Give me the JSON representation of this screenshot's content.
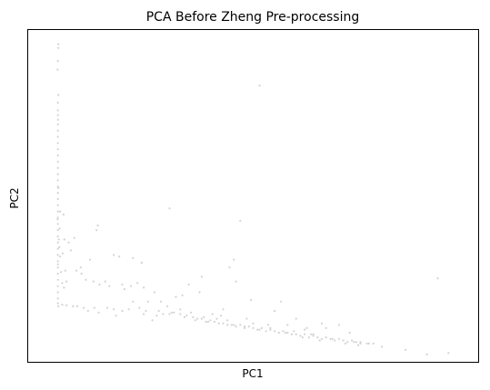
{
  "chart_data": {
    "type": "scatter",
    "title": "PCA Before Zheng Pre-processing",
    "xlabel": "PC1",
    "ylabel": "PC2",
    "xlim": [
      0,
      100
    ],
    "ylim": [
      0,
      100
    ],
    "grid": false,
    "x_ticks_shown": false,
    "y_ticks_shown": false,
    "point_color": "#d3d3d3",
    "series": [
      {
        "values": [
          [
            4.6,
            98.8
          ],
          [
            4.6,
            97.6
          ],
          [
            4.5,
            93.4
          ],
          [
            4.4,
            90.6
          ],
          [
            4.6,
            82.5
          ],
          [
            4.5,
            80.0
          ],
          [
            4.5,
            77.5
          ],
          [
            4.5,
            76.0
          ],
          [
            4.5,
            74.5
          ],
          [
            4.5,
            73.0
          ],
          [
            4.5,
            71.0
          ],
          [
            4.5,
            69.0
          ],
          [
            4.5,
            67.0
          ],
          [
            4.5,
            65.0
          ],
          [
            4.5,
            63.0
          ],
          [
            4.5,
            61.0
          ],
          [
            4.5,
            59.0
          ],
          [
            4.5,
            57.0
          ],
          [
            4.5,
            55.0
          ],
          [
            4.5,
            53.0
          ],
          [
            4.5,
            51.0
          ],
          [
            4.5,
            49.0
          ],
          [
            4.5,
            47.0
          ],
          [
            4.5,
            45.0
          ],
          [
            4.5,
            43.0
          ],
          [
            4.5,
            41.0
          ],
          [
            4.5,
            39.0
          ],
          [
            4.5,
            37.0
          ],
          [
            4.5,
            35.0
          ],
          [
            4.5,
            33.0
          ],
          [
            4.5,
            31.0
          ],
          [
            4.5,
            29.0
          ],
          [
            4.5,
            27.0
          ],
          [
            4.5,
            25.0
          ],
          [
            4.5,
            23.0
          ],
          [
            4.5,
            21.0
          ],
          [
            4.5,
            19.0
          ],
          [
            4.5,
            17.0
          ],
          [
            4.5,
            15.5
          ],
          [
            4.6,
            14.5
          ],
          [
            4.5,
            28.0
          ],
          [
            4.7,
            36.0
          ],
          [
            4.4,
            42.5
          ],
          [
            4.6,
            52.5
          ],
          [
            4.8,
            33.5
          ],
          [
            5.0,
            45.0
          ],
          [
            5.2,
            25.5
          ],
          [
            5.5,
            22.0
          ],
          [
            5.0,
            30.5
          ],
          [
            4.9,
            39.5
          ],
          [
            5.8,
            44.0
          ],
          [
            6.0,
            36.0
          ],
          [
            5.6,
            31.5
          ],
          [
            6.2,
            26.0
          ],
          [
            5.9,
            20.5
          ],
          [
            6.5,
            22.5
          ],
          [
            7.0,
            35.0
          ],
          [
            7.5,
            32.5
          ],
          [
            8.3,
            36.5
          ],
          [
            8.8,
            26.0
          ],
          [
            9.8,
            27.0
          ],
          [
            10.0,
            25.0
          ],
          [
            11.0,
            23.0
          ],
          [
            12.0,
            29.5
          ],
          [
            12.8,
            22.5
          ],
          [
            13.5,
            39.0
          ],
          [
            13.8,
            40.5
          ],
          [
            14.2,
            21.5
          ],
          [
            15.5,
            22.5
          ],
          [
            16.5,
            21.0
          ],
          [
            17.5,
            31.0
          ],
          [
            18.8,
            30.5
          ],
          [
            19.5,
            21.5
          ],
          [
            20.0,
            20.0
          ],
          [
            21.5,
            21.0
          ],
          [
            22.0,
            30.0
          ],
          [
            23.0,
            22.0
          ],
          [
            24.5,
            20.5
          ],
          [
            24.0,
            28.5
          ],
          [
            25.5,
            16.0
          ],
          [
            27.0,
            19.0
          ],
          [
            28.5,
            16.0
          ],
          [
            30.0,
            14.5
          ],
          [
            30.5,
            46.0
          ],
          [
            31.5,
            12.5
          ],
          [
            32.0,
            17.5
          ],
          [
            33.0,
            12.0
          ],
          [
            33.5,
            18.0
          ],
          [
            34.5,
            11.5
          ],
          [
            35.0,
            21.5
          ],
          [
            36.0,
            11.0
          ],
          [
            37.0,
            10.5
          ],
          [
            38.0,
            10.5
          ],
          [
            39.0,
            9.5
          ],
          [
            40.0,
            10.0
          ],
          [
            41.0,
            9.5
          ],
          [
            42.0,
            9.0
          ],
          [
            43.0,
            9.0
          ],
          [
            44.0,
            8.5
          ],
          [
            45.0,
            8.5
          ],
          [
            46.0,
            8.0
          ],
          [
            47.0,
            8.5
          ],
          [
            48.0,
            7.5
          ],
          [
            49.0,
            8.0
          ],
          [
            50.0,
            7.5
          ],
          [
            51.0,
            7.0
          ],
          [
            52.0,
            7.5
          ],
          [
            53.0,
            6.5
          ],
          [
            54.0,
            7.0
          ],
          [
            55.0,
            6.5
          ],
          [
            56.0,
            6.0
          ],
          [
            57.0,
            6.5
          ],
          [
            58.0,
            6.0
          ],
          [
            59.0,
            5.5
          ],
          [
            60.0,
            5.5
          ],
          [
            61.0,
            5.0
          ],
          [
            62.0,
            5.5
          ],
          [
            63.0,
            4.5
          ],
          [
            64.0,
            5.0
          ],
          [
            65.0,
            4.5
          ],
          [
            66.0,
            4.0
          ],
          [
            67.0,
            4.5
          ],
          [
            68.0,
            4.0
          ],
          [
            69.0,
            3.5
          ],
          [
            70.0,
            4.0
          ],
          [
            71.0,
            3.5
          ],
          [
            72.0,
            3.0
          ],
          [
            73.0,
            3.5
          ],
          [
            74.0,
            3.0
          ],
          [
            75.0,
            2.5
          ],
          [
            76.5,
            2.5
          ],
          [
            78.0,
            2.5
          ],
          [
            80.0,
            1.5
          ],
          [
            85.5,
            0.5
          ],
          [
            90.5,
            -1.0
          ],
          [
            95.5,
            -0.5
          ],
          [
            93.0,
            23.5
          ],
          [
            51.5,
            85.5
          ],
          [
            47.0,
            42.0
          ],
          [
            37.5,
            19.0
          ],
          [
            38.0,
            24.0
          ],
          [
            43.0,
            13.5
          ],
          [
            44.5,
            27.0
          ],
          [
            48.5,
            10.5
          ],
          [
            49.5,
            16.5
          ],
          [
            45.5,
            29.5
          ],
          [
            46.0,
            22.5
          ],
          [
            55.0,
            13.0
          ],
          [
            60.0,
            10.5
          ],
          [
            56.5,
            16.0
          ],
          [
            62.5,
            7.5
          ],
          [
            64.0,
            5.5
          ],
          [
            67.0,
            7.5
          ],
          [
            70.0,
            8.5
          ],
          [
            72.5,
            6.0
          ],
          [
            75.0,
            3.0
          ],
          [
            77.0,
            2.5
          ],
          [
            18.0,
            11.5
          ],
          [
            22.0,
            16.0
          ],
          [
            26.5,
            10.0
          ],
          [
            29.0,
            12.0
          ],
          [
            33.0,
            13.5
          ],
          [
            35.5,
            12.5
          ],
          [
            40.5,
            12.0
          ],
          [
            42.5,
            11.5
          ],
          [
            23.5,
            14.0
          ],
          [
            14.0,
            12.5
          ],
          [
            11.5,
            13.0
          ],
          [
            9.0,
            14.5
          ],
          [
            16.0,
            14.0
          ],
          [
            19.5,
            13.0
          ],
          [
            24.5,
            12.0
          ],
          [
            27.5,
            11.5
          ],
          [
            31.0,
            12.5
          ],
          [
            36.5,
            10.0
          ],
          [
            39.5,
            9.5
          ],
          [
            45.5,
            8.5
          ],
          [
            48.0,
            8.0
          ],
          [
            51.5,
            7.0
          ],
          [
            53.5,
            8.5
          ],
          [
            57.5,
            6.0
          ],
          [
            59.5,
            6.5
          ],
          [
            61.5,
            4.5
          ],
          [
            63.5,
            5.5
          ],
          [
            65.5,
            3.5
          ],
          [
            68.5,
            4.0
          ],
          [
            71.5,
            2.5
          ],
          [
            73.5,
            3.0
          ],
          [
            74.5,
            2.0
          ],
          [
            66.0,
            9.0
          ],
          [
            62.0,
            7.0
          ],
          [
            58.0,
            8.5
          ],
          [
            54.0,
            7.5
          ],
          [
            50.0,
            9.0
          ],
          [
            44.0,
            10.0
          ],
          [
            41.5,
            10.5
          ],
          [
            38.5,
            11.0
          ],
          [
            34.0,
            11.0
          ],
          [
            30.5,
            12.0
          ],
          [
            28.0,
            13.0
          ],
          [
            25.0,
            13.0
          ],
          [
            21.0,
            13.5
          ],
          [
            17.5,
            13.5
          ],
          [
            13.0,
            14.0
          ],
          [
            10.5,
            14.0
          ],
          [
            8.0,
            14.5
          ],
          [
            6.5,
            14.8
          ],
          [
            5.5,
            15.0
          ]
        ]
      }
    ]
  }
}
